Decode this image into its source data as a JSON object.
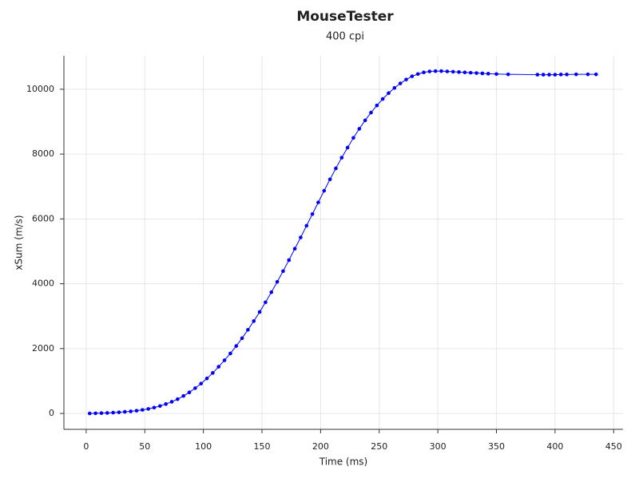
{
  "chart_data": {
    "type": "line",
    "title": "MouseTester",
    "subtitle": "400 cpi",
    "x_label": "Time (ms)",
    "y_label": "xSum (m/s)",
    "xlim": [
      -19,
      458
    ],
    "ylim": [
      -490,
      11030
    ],
    "xticks": [
      0,
      50,
      100,
      150,
      200,
      250,
      300,
      350,
      400,
      450
    ],
    "yticks": [
      0,
      2000,
      4000,
      6000,
      8000,
      10000
    ],
    "grid": true,
    "series": [
      {
        "color": "#0000ff",
        "x": [
          3,
          8,
          13,
          18,
          23,
          28,
          33,
          38,
          43,
          48,
          53,
          58,
          63,
          68,
          73,
          78,
          83,
          88,
          93,
          98,
          103,
          108,
          113,
          118,
          123,
          128,
          133,
          138,
          143,
          148,
          153,
          158,
          163,
          168,
          173,
          178,
          183,
          188,
          193,
          198,
          203,
          208,
          213,
          218,
          223,
          228,
          233,
          238,
          243,
          248,
          253,
          258,
          263,
          268,
          273,
          278,
          283,
          288,
          293,
          298,
          303,
          308,
          313,
          318,
          323,
          328,
          333,
          338,
          343,
          350,
          360,
          385,
          390,
          395,
          400,
          405,
          410,
          418,
          428,
          435
        ],
        "values": [
          0,
          5,
          10,
          15,
          25,
          35,
          50,
          65,
          85,
          110,
          140,
          180,
          230,
          290,
          360,
          440,
          540,
          650,
          780,
          920,
          1080,
          1250,
          1440,
          1640,
          1850,
          2080,
          2320,
          2580,
          2850,
          3130,
          3430,
          3740,
          4060,
          4390,
          4730,
          5080,
          5430,
          5790,
          6150,
          6510,
          6870,
          7220,
          7560,
          7890,
          8200,
          8500,
          8780,
          9040,
          9280,
          9500,
          9700,
          9880,
          10040,
          10180,
          10300,
          10400,
          10470,
          10520,
          10550,
          10560,
          10560,
          10550,
          10540,
          10530,
          10520,
          10510,
          10500,
          10490,
          10480,
          10470,
          10460,
          10450,
          10450,
          10450,
          10450,
          10455,
          10455,
          10460,
          10460,
          10460
        ]
      }
    ]
  }
}
